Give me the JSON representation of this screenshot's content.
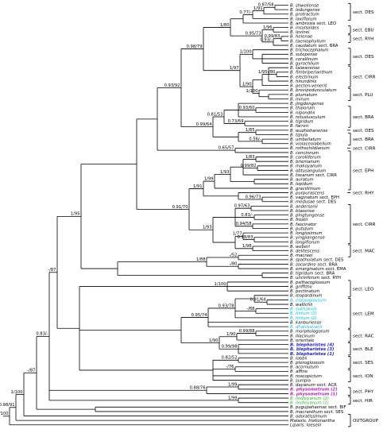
{
  "support_values": {
    "root": "1/100",
    "n_09891": "0.98/91",
    "n_1100": "1/100",
    "n_87a": "-/87",
    "n_83": "0.83/-",
    "n_87b": "-/87",
    "n_195": "1/95",
    "n_9170": "0.91/70",
    "n_9392": "0.93/92",
    "n_9879": "0.98/79",
    "n_180": "1/80",
    "n_077": "0.77/-",
    "n_191": "1/91",
    "n_8758": "0.87/58",
    "n_196": "1/96",
    "n_9573": "0.95/73",
    "n_9983": "0.99/83",
    "n_093": "0.93/-",
    "n_1100b": "1/100",
    "n_195b": "1/95",
    "n_180b": "-/80",
    "n_190": "1/90",
    "n_197": "1/97",
    "n_1100c": "1/100",
    "n_8153": "0.81/53",
    "n_9360": "0.93/60",
    "n_7369": "0.73/69",
    "n_9964": "0.99/64",
    "n_185": "1/85",
    "n_056": "0.56/-",
    "n_6557": "0.65/57",
    "n_183": "1/83",
    "n_9982": "0.99/82",
    "n_193": "1/93",
    "n_199": "1/99",
    "n_191b": "1/91",
    "n_193b": "1/93",
    "n_9673": "0.96/73",
    "n_9763": "0.97/63",
    "n_081": "0.81/-",
    "n_9458": "0.94/58",
    "n_9883": "0.98/83",
    "n_177": "1/77",
    "n_198": "1/98",
    "n_52": "-/52",
    "n_188": "1/88",
    "n_80": "-/80",
    "n_1100d": "1/100",
    "n_9164": "0.91/64",
    "n_68": "-/68",
    "n_9378": "0.93/78",
    "n_9574": "0.95/74",
    "n_9988": "0.99/88",
    "n_190b": "1/90",
    "n_9998": "0.99/98",
    "n_190c": "1/90",
    "n_8252": "0.82/52",
    "n_76": "-/76",
    "n_199b": "1/99",
    "n_8876": "0.88/76",
    "n_199c": "1/99"
  },
  "taxa": [
    {
      "label": "B. shweliense",
      "color": "#000000"
    },
    {
      "label": "B. ledungense",
      "color": "#000000"
    },
    {
      "label": "B. protractum",
      "color": "#000000"
    },
    {
      "label": "B. laxiflorum",
      "color": "#000000"
    },
    {
      "label": "B. ambrosia",
      "suffix": "sect. LEO",
      "color": "#000000"
    },
    {
      "label": "B. insulsoides",
      "color": "#000000"
    },
    {
      "label": "B. levinei",
      "color": "#000000"
    },
    {
      "label": "B. helenae",
      "color": "#000000"
    },
    {
      "label": "B. taeniophyllum",
      "color": "#000000"
    },
    {
      "label": "B. caudatum",
      "suffix": "sect. BRA",
      "color": "#000000"
    },
    {
      "label": "B. trichocephalum",
      "color": "#000000"
    },
    {
      "label": "B. sutepense",
      "color": "#000000"
    },
    {
      "label": "B. corallinum",
      "color": "#000000"
    },
    {
      "label": "B. gyrochilum",
      "color": "#000000"
    },
    {
      "label": "B. taiwanense",
      "color": "#000000"
    },
    {
      "label": "B. fimbriperianthum",
      "color": "#000000"
    },
    {
      "label": "B. electrinum",
      "color": "#000000"
    },
    {
      "label": "B. hirundinis",
      "color": "#000000"
    },
    {
      "label": "B. pecten-veneris",
      "color": "#000000"
    },
    {
      "label": "B. brevipedunculatum",
      "color": "#000000"
    },
    {
      "label": "B. plumatum",
      "color": "#000000"
    },
    {
      "label": "B. mirum",
      "color": "#000000"
    },
    {
      "label": "B. jingdongense",
      "color": "#000000"
    },
    {
      "label": "B. thaiorum",
      "color": "#000000"
    },
    {
      "label": "B. nipondhii",
      "color": "#000000"
    },
    {
      "label": "B. retusiusculum",
      "color": "#000000"
    },
    {
      "label": "B. tigridum",
      "color": "#000000"
    },
    {
      "label": "B. farreri",
      "color": "#000000"
    },
    {
      "label": "B. wuzhishanense",
      "color": "#000000"
    },
    {
      "label": "B. tipula",
      "color": "#000000"
    },
    {
      "label": "B. umbellatum",
      "color": "#000000"
    },
    {
      "label": "B. violaceolabellum",
      "color": "#000000"
    },
    {
      "label": "B. rothschildianum",
      "color": "#000000"
    },
    {
      "label": "B. concinnum",
      "color": "#000000"
    },
    {
      "label": "B. corolliferum",
      "color": "#000000"
    },
    {
      "label": "B. brienianum",
      "color": "#000000"
    },
    {
      "label": "B. makoyanum",
      "color": "#000000"
    },
    {
      "label": "B. obtusangulum",
      "color": "#000000"
    },
    {
      "label": "B. tseanum",
      "suffix": "sect. CIRR",
      "color": "#000000"
    },
    {
      "label": "B. auratum",
      "color": "#000000"
    },
    {
      "label": "B. lepidum",
      "color": "#000000"
    },
    {
      "label": "B. gracillimum",
      "color": "#000000"
    },
    {
      "label": "B. purpurascens",
      "color": "#000000"
    },
    {
      "label": "B. vaginatum",
      "suffix": "sect. EPH",
      "color": "#000000"
    },
    {
      "label": "B. medusae",
      "suffix": "sect. DES",
      "color": "#000000"
    },
    {
      "label": "B. andersonii",
      "color": "#000000"
    },
    {
      "label": "B. blaoense",
      "color": "#000000"
    },
    {
      "label": "B. pingtungense",
      "color": "#000000"
    },
    {
      "label": "B. frostii",
      "color": "#000000"
    },
    {
      "label": "B. fascinator",
      "color": "#000000"
    },
    {
      "label": "B. putidum",
      "color": "#000000"
    },
    {
      "label": "B. longissimum",
      "color": "#000000"
    },
    {
      "label": "B. yingjiangense",
      "color": "#000000"
    },
    {
      "label": "B. longiflorum",
      "color": "#000000"
    },
    {
      "label": "B. weberi",
      "color": "#000000"
    },
    {
      "label": "B. delitescens",
      "color": "#000000"
    },
    {
      "label": "B. macraei",
      "color": "#000000"
    },
    {
      "label": "B. spathulatum",
      "suffix": "sect. DES",
      "color": "#000000"
    },
    {
      "label": "B. socordine",
      "suffix": "sect. BRA",
      "color": "#000000"
    },
    {
      "label": "B. emarginatum",
      "suffix": "sect. EMA",
      "color": "#000000"
    },
    {
      "label": "B. tigridum",
      "suffix": "sect. BRA",
      "color": "#000000"
    },
    {
      "label": "B. uncinferum",
      "suffix": "sect. RYH",
      "color": "#000000"
    },
    {
      "label": "B. psittacoglossum",
      "color": "#000000"
    },
    {
      "label": "B. griffithii",
      "color": "#000000"
    },
    {
      "label": "B. pectinatum",
      "color": "#000000"
    },
    {
      "label": "B. leopardinum",
      "color": "#000000"
    },
    {
      "label": "B. elassoglossum",
      "color": "#00c0d8"
    },
    {
      "label": "B. wallichii",
      "color": "#000000"
    },
    {
      "label": "B. sukhakulii",
      "color": "#00c0d8"
    },
    {
      "label": "B. hirtum (1)",
      "color": "#00c0d8"
    },
    {
      "label": "B. hirtum (2)",
      "color": "#00c0d8"
    },
    {
      "label": "B. kanburiense",
      "color": "#000000"
    },
    {
      "label": "B. dhanisavanii",
      "color": "#00c0d8"
    },
    {
      "label": "B. morphologorum",
      "color": "#000000"
    },
    {
      "label": "B. lilacinum",
      "color": "#000000"
    },
    {
      "label": "B. orientale",
      "color": "#000000"
    },
    {
      "label": "B. blepharistes (4)",
      "color": "#1c1cc8",
      "bold": true
    },
    {
      "label": "B. blepharistes (3)",
      "color": "#1c1cc8",
      "bold": true
    },
    {
      "label": "B. blepharistes (1)",
      "color": "#1c1cc8",
      "bold": true
    },
    {
      "label": "B. lobbii",
      "color": "#000000"
    },
    {
      "label": "B. pteroglossum",
      "color": "#000000"
    },
    {
      "label": "B. acornutum",
      "color": "#000000"
    },
    {
      "label": "B. affine",
      "color": "#000000"
    },
    {
      "label": "B. roseopictum",
      "color": "#000000"
    },
    {
      "label": "B. sunipia",
      "color": "#000000"
    },
    {
      "label": "B. dayanum",
      "suffix": "sect. ACR",
      "color": "#000000"
    },
    {
      "label": "B. physometrum (2)",
      "color": "#b424b4",
      "bold": true
    },
    {
      "label": "B. physometrum (1)",
      "color": "#b424b4",
      "bold": true
    },
    {
      "label": "B. lindleyanum (2)",
      "color": "#28b428"
    },
    {
      "label": "B. lindleyanum (1)",
      "color": "#28b428"
    },
    {
      "label": "B. pugupahaense",
      "suffix": "sect. BIF",
      "color": "#000000"
    },
    {
      "label": "B. macranthum",
      "suffix": "sect. SES",
      "color": "#000000"
    },
    {
      "label": "B. odoratissimum",
      "color": "#000000"
    },
    {
      "label": "Malaxis. histionantha",
      "color": "#000000"
    },
    {
      "label": "Liparis. loeselii",
      "color": "#000000"
    }
  ],
  "sections": [
    {
      "label": "sect. DES",
      "from": 0,
      "to": 3
    },
    {
      "label": "sect. EBU",
      "from": 5,
      "to": 6
    },
    {
      "label": "sect. RYH",
      "from": 7,
      "to": 8
    },
    {
      "label": "sect. DES",
      "from": 10,
      "to": 13
    },
    {
      "label": "sect. CIRR",
      "from": 14,
      "to": 18
    },
    {
      "label": "sect. PLU",
      "from": 19,
      "to": 21
    },
    {
      "label": "sect. BRA",
      "from": 23,
      "to": 27
    },
    {
      "label": "sect. DES",
      "from": 28,
      "to": 28
    },
    {
      "label": "sect. BRA",
      "from": 29,
      "to": 31
    },
    {
      "label": "sect. CIRR",
      "from": 32,
      "to": 32
    },
    {
      "label": "sect. EPH",
      "from": 33,
      "to": 41
    },
    {
      "label": "sect. RHY",
      "from": 42,
      "to": 42
    },
    {
      "label": "sect. CIRR",
      "from": 45,
      "to": 53
    },
    {
      "label": "sect. MAC",
      "from": 54,
      "to": 56
    },
    {
      "label": "sect. LEO",
      "from": 62,
      "to": 65
    },
    {
      "label": "sect. LEM",
      "from": 66,
      "to": 72
    },
    {
      "label": "sect. RAC",
      "from": 73,
      "to": 75
    },
    {
      "label": "sect. BLE",
      "from": 76,
      "to": 78
    },
    {
      "label": "sect. SES",
      "from": 79,
      "to": 81
    },
    {
      "label": "sect. ION",
      "from": 82,
      "to": 84
    },
    {
      "label": "sect. PHY",
      "from": 86,
      "to": 87
    },
    {
      "label": "sect. HIR",
      "from": 88,
      "to": 89
    },
    {
      "label": "OUTGROUP",
      "from": 92,
      "to": 94
    }
  ],
  "styles": {
    "line_color": "#000000",
    "cyan": "#00c0d8",
    "blue": "#1c1cc8",
    "purple": "#b424b4",
    "green": "#28b428"
  }
}
